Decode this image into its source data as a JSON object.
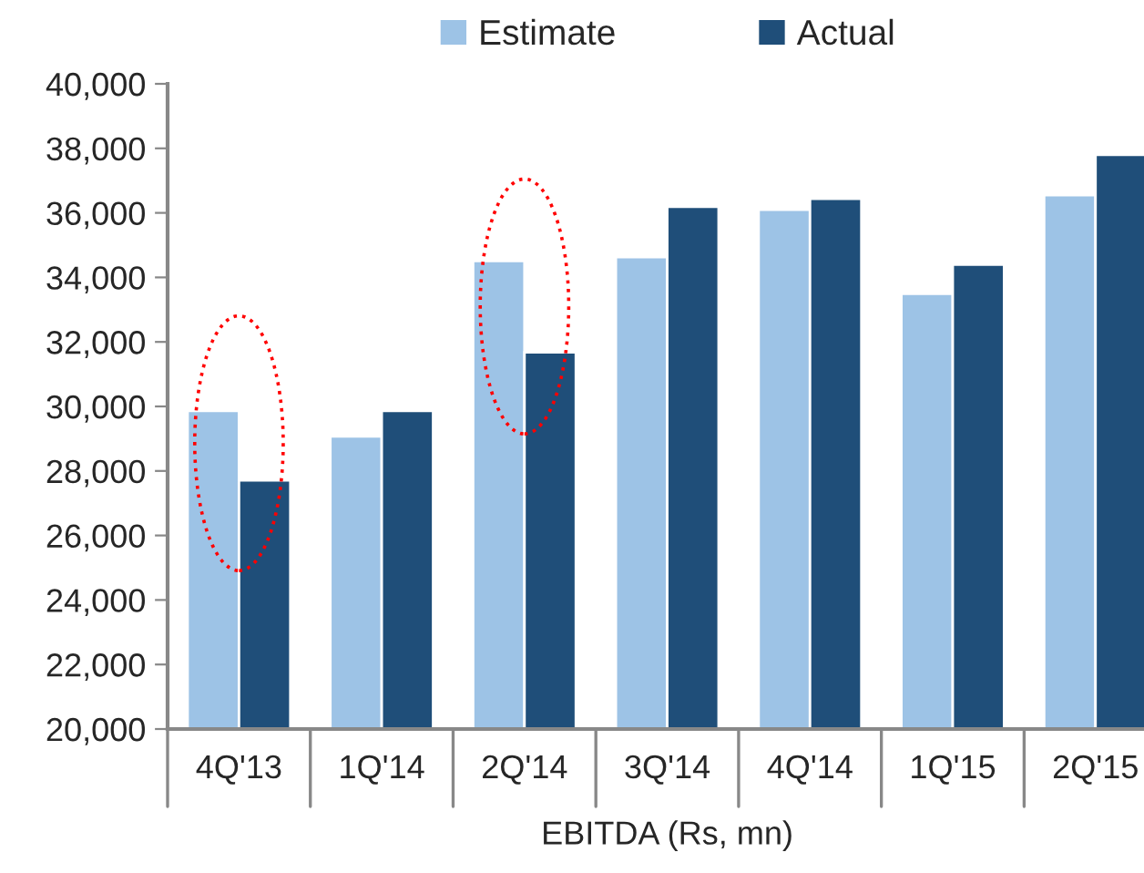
{
  "chart_data": {
    "type": "bar",
    "xlabel": "EBITDA (Rs, mn)",
    "categories": [
      "4Q'13",
      "1Q'14",
      "2Q'14",
      "3Q'14",
      "4Q'14",
      "1Q'15",
      "2Q'15"
    ],
    "series": [
      {
        "name": "Estimate",
        "color": "#9dc3e6",
        "values": [
          29860,
          29070,
          34510,
          34630,
          36100,
          33490,
          36550
        ]
      },
      {
        "name": "Actual",
        "color": "#1f4e79",
        "values": [
          27710,
          29860,
          31680,
          36190,
          36440,
          34400,
          37800
        ]
      }
    ],
    "ylim": [
      20000,
      40000
    ],
    "yticks": [
      {
        "value": 20000,
        "label": "20,000"
      },
      {
        "value": 22000,
        "label": "22,000"
      },
      {
        "value": 24000,
        "label": "24,000"
      },
      {
        "value": 26000,
        "label": "26,000"
      },
      {
        "value": 28000,
        "label": "28,000"
      },
      {
        "value": 30000,
        "label": "30,000"
      },
      {
        "value": 32000,
        "label": "32,000"
      },
      {
        "value": 34000,
        "label": "34,000"
      },
      {
        "value": 36000,
        "label": "36,000"
      },
      {
        "value": 38000,
        "label": "38,000"
      },
      {
        "value": 40000,
        "label": "40,000"
      }
    ],
    "grid": false,
    "legend": "top"
  }
}
